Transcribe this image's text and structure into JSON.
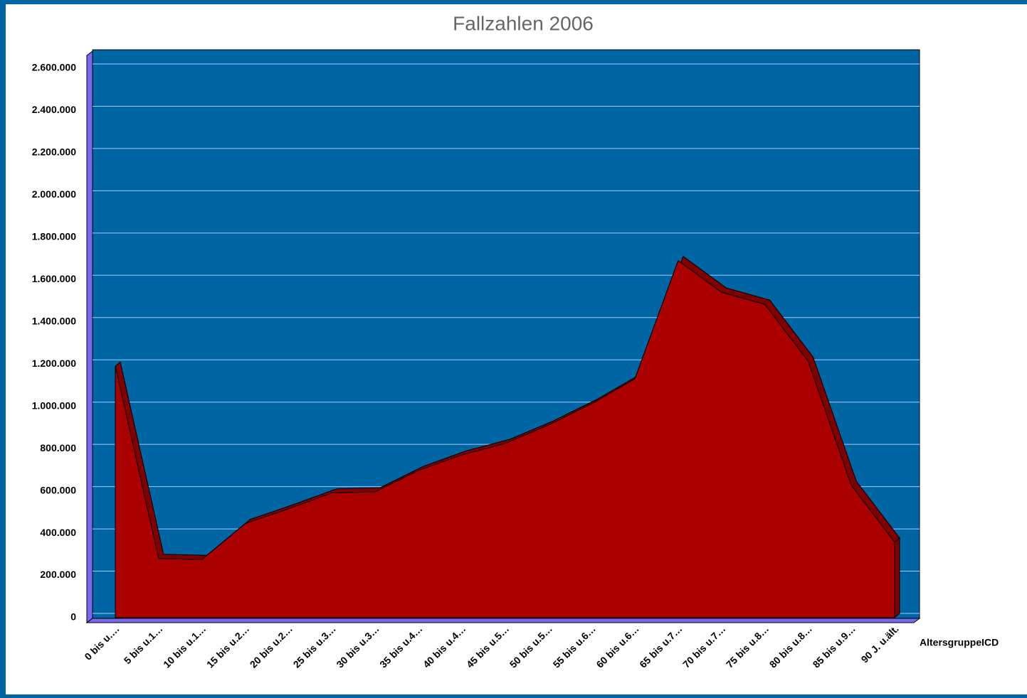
{
  "chart_data": {
    "type": "area",
    "title": "Fallzahlen 2006",
    "x_label": "AltersgruppeICD",
    "categories": [
      "0 bis u.…",
      "5 bis u.1…",
      "10 bis u.1…",
      "15 bis u.2…",
      "20 bis u.2…",
      "25 bis u.3…",
      "30 bis u.3…",
      "35 bis u.4…",
      "40 bis u.4…",
      "45 bis u.5…",
      "50 bis u.5…",
      "55 bis u.6…",
      "60 bis u.6…",
      "65 bis u.7…",
      "70 bis u.7…",
      "75 bis u.8…",
      "80 bis u.8…",
      "85 bis u.9…",
      "90 J. u.ält."
    ],
    "values": [
      1190000,
      280000,
      275000,
      445000,
      515000,
      590000,
      595000,
      696000,
      770000,
      824000,
      911000,
      1012000,
      1130000,
      1690000,
      1540000,
      1483000,
      1214000,
      626000,
      357000
    ],
    "color": "#aa0000",
    "ylim": [
      0,
      2600000
    ],
    "yticks": [
      0,
      {
        "value": 200000,
        "label": "200.000"
      },
      {
        "value": 400000,
        "label": "400.000"
      },
      {
        "value": 600000,
        "label": "600.000"
      },
      {
        "value": 800000,
        "label": "800.000"
      },
      {
        "value": 1000000,
        "label": "1.000.000"
      },
      {
        "value": 1200000,
        "label": "1.200.000"
      },
      {
        "value": 1400000,
        "label": "1.400.000"
      },
      {
        "value": 1600000,
        "label": "1.600.000"
      },
      {
        "value": 1800000,
        "label": "1.800.000"
      },
      {
        "value": 2000000,
        "label": "2.000.000"
      },
      {
        "value": 2200000,
        "label": "2.200.000"
      },
      {
        "value": 2400000,
        "label": "2.400.000"
      },
      {
        "value": 2600000,
        "label": "2.600.000"
      }
    ],
    "grid": true
  }
}
